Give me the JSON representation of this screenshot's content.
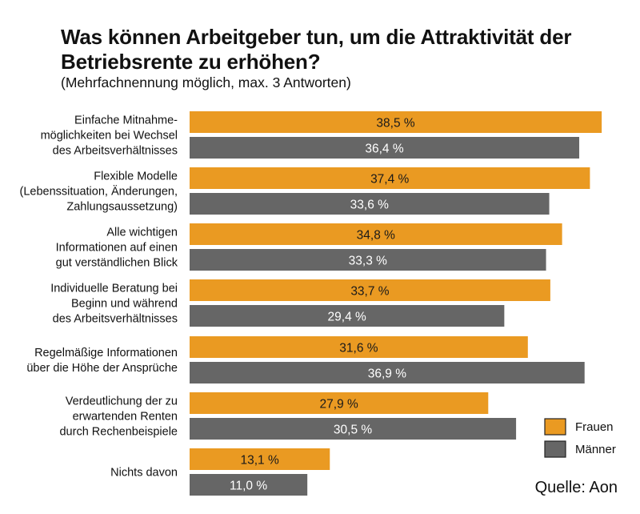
{
  "title": "Was können Arbeitgeber tun, um die Attraktivität der Betriebsrente zu erhöhen?",
  "subtitle": "(Mehrfachnennung möglich, max. 3 Antworten)",
  "source": "Quelle: Aon",
  "colors": {
    "frauen": "#EA9A22",
    "maenner": "#666666"
  },
  "chart_data": {
    "type": "bar",
    "orientation": "horizontal",
    "categories": [
      [
        "Einfache Mitnahme-",
        "möglichkeiten bei Wechsel",
        "des Arbeitsverhältnisses"
      ],
      [
        "Flexible Modelle",
        "(Lebenssituation, Änderungen,",
        "Zahlungsaussetzung)"
      ],
      [
        "Alle wichtigen",
        "Informationen auf einen",
        "gut verständlichen Blick"
      ],
      [
        "Individuelle Beratung bei",
        "Beginn und während",
        "des Arbeitsverhältnisses"
      ],
      [
        "Regelmäßige Informationen",
        "über die Höhe der Ansprüche"
      ],
      [
        "Verdeutlichung der zu",
        "erwartenden Renten",
        "durch Rechenbeispiele"
      ],
      [
        "Nichts davon"
      ]
    ],
    "series": [
      {
        "name": "Frauen",
        "values": [
          38.5,
          37.4,
          34.8,
          33.7,
          31.6,
          27.9,
          13.1
        ],
        "labels": [
          "38,5 %",
          "37,4 %",
          "34,8 %",
          "33,7 %",
          "31,6 %",
          "27,9 %",
          "13,1 %"
        ]
      },
      {
        "name": "Männer",
        "values": [
          36.4,
          33.6,
          33.3,
          29.4,
          36.9,
          30.5,
          11.0
        ],
        "labels": [
          "36,4 %",
          "33,6 %",
          "33,3 %",
          "29,4 %",
          "36,9 %",
          "30,5 %",
          "11,0 %"
        ]
      }
    ],
    "xlim": [
      0,
      40
    ],
    "grid": false,
    "legend": "bottom-right"
  }
}
